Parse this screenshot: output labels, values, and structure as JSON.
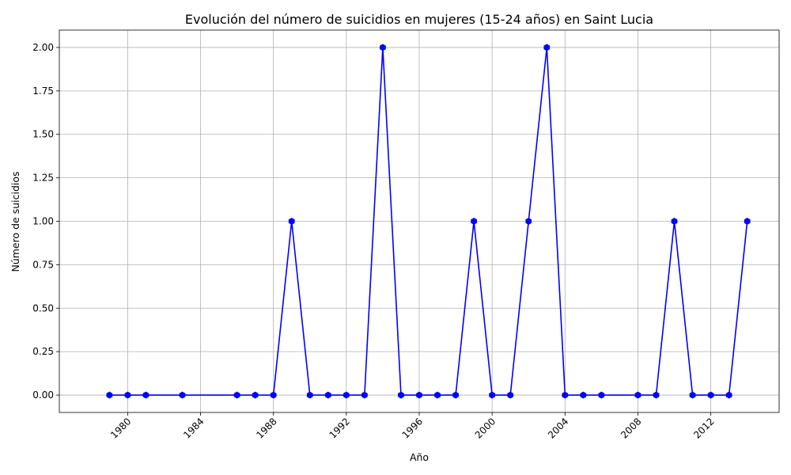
{
  "chart_data": {
    "type": "line",
    "title": "Evolución del número de suicidios en mujeres (15-24 años) en Saint Lucia",
    "xlabel": "Año",
    "ylabel": "Número de suicidios",
    "x": [
      1979,
      1980,
      1981,
      1983,
      1986,
      1987,
      1988,
      1989,
      1990,
      1991,
      1992,
      1993,
      1994,
      1995,
      1996,
      1997,
      1998,
      1999,
      2000,
      2001,
      2002,
      2003,
      2004,
      2005,
      2006,
      2008,
      2009,
      2010,
      2011,
      2012,
      2013,
      2014
    ],
    "series": [
      {
        "values": [
          0,
          0,
          0,
          0,
          0,
          0,
          0,
          1,
          0,
          0,
          0,
          0,
          2,
          0,
          0,
          0,
          0,
          1,
          0,
          0,
          1,
          2,
          0,
          0,
          0,
          0,
          0,
          1,
          0,
          0,
          0,
          1
        ],
        "color": "#0000ff",
        "marker": "hexagon"
      }
    ],
    "xlim": [
      1976.25,
      2015.75
    ],
    "ylim": [
      -0.1,
      2.1
    ],
    "xticks": [
      "1980",
      "1984",
      "1988",
      "1992",
      "1996",
      "2000",
      "2004",
      "2008",
      "2012"
    ],
    "xtick_values": [
      1980,
      1984,
      1988,
      1992,
      1996,
      2000,
      2004,
      2008,
      2012
    ],
    "yticks": [
      "0.00",
      "0.25",
      "0.50",
      "0.75",
      "1.00",
      "1.25",
      "1.50",
      "1.75",
      "2.00"
    ],
    "ytick_values": [
      0,
      0.25,
      0.5,
      0.75,
      1,
      1.25,
      1.5,
      1.75,
      2
    ],
    "xtick_rotation": 45,
    "grid": true
  }
}
